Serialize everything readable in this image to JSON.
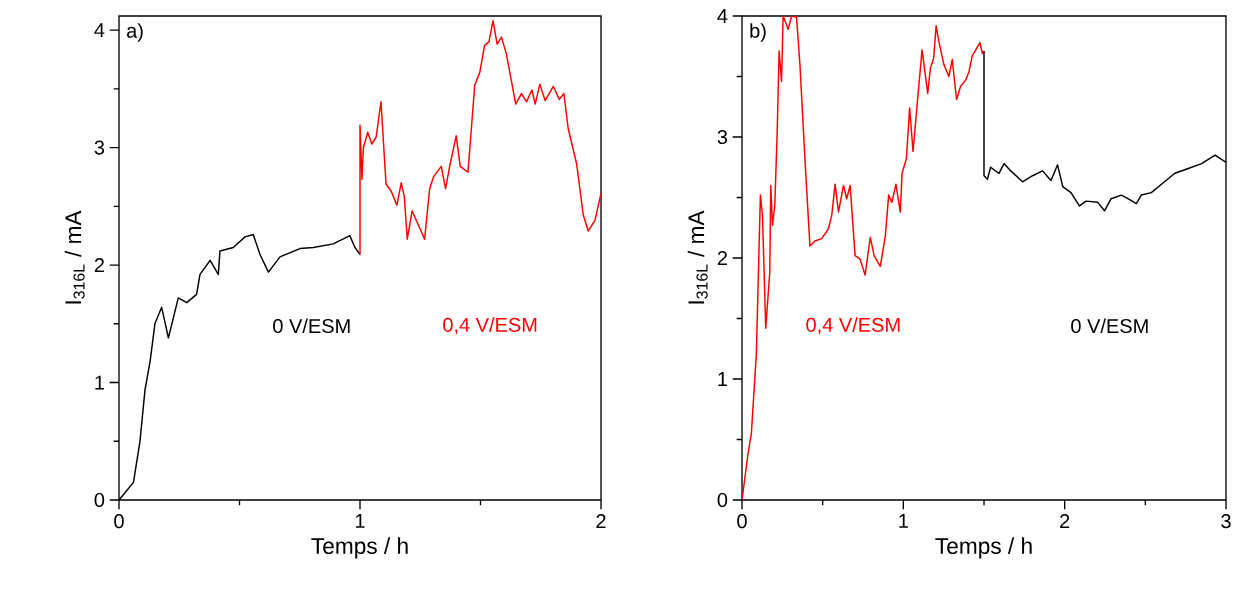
{
  "chart_data": [
    {
      "type": "line",
      "xlabel": "Temps / h",
      "ylabel": "I$_{316L}$ / mA",
      "annotations": [
        "a)"
      ],
      "xlim": [
        0,
        2
      ],
      "ylim": [
        0,
        4.12
      ],
      "xticks": [
        0,
        {
          "value": 0.5,
          "label": null
        },
        1,
        {
          "value": 1.5,
          "label": null
        },
        2
      ],
      "yticks": [
        0,
        {
          "value": 0.5,
          "label": null
        },
        1,
        {
          "value": 1.5,
          "label": null
        },
        2,
        {
          "value": 2.5,
          "label": null
        },
        3,
        {
          "value": 3.5,
          "label": null
        },
        4
      ],
      "series": [
        {
          "name": "0 V/ESM",
          "color": "#000000",
          "x": [
            0,
            0.06,
            0.087,
            0.108,
            0.129,
            0.149,
            0.177,
            0.205,
            0.246,
            0.281,
            0.322,
            0.336,
            0.378,
            0.412,
            0.419,
            0.474,
            0.523,
            0.557,
            0.585,
            0.62,
            0.668,
            0.751,
            0.806,
            0.889,
            0.958,
            0.979,
            1.0
          ],
          "values": [
            0,
            0.15,
            0.5,
            0.94,
            1.18,
            1.5,
            1.64,
            1.38,
            1.72,
            1.68,
            1.75,
            1.92,
            2.04,
            1.92,
            2.12,
            2.15,
            2.24,
            2.26,
            2.09,
            1.94,
            2.07,
            2.14,
            2.15,
            2.18,
            2.25,
            2.15,
            2.09
          ]
        },
        {
          "name": "0,4 V/ESM",
          "color": "#ff0000",
          "x": [
            1.0,
            1.0,
            1.008,
            1.014,
            1.032,
            1.049,
            1.067,
            1.087,
            1.108,
            1.129,
            1.153,
            1.171,
            1.184,
            1.196,
            1.216,
            1.247,
            1.268,
            1.289,
            1.305,
            1.337,
            1.355,
            1.372,
            1.399,
            1.416,
            1.448,
            1.476,
            1.497,
            1.517,
            1.535,
            1.552,
            1.569,
            1.587,
            1.607,
            1.628,
            1.646,
            1.67,
            1.691,
            1.713,
            1.727,
            1.746,
            1.768,
            1.802,
            1.827,
            1.846,
            1.864,
            1.899,
            1.926,
            1.947,
            1.975,
            2.0
          ],
          "values": [
            2.09,
            3.19,
            2.73,
            3.0,
            3.13,
            3.03,
            3.09,
            3.39,
            2.69,
            2.63,
            2.51,
            2.7,
            2.58,
            2.22,
            2.46,
            2.32,
            2.22,
            2.65,
            2.75,
            2.84,
            2.65,
            2.84,
            3.1,
            2.84,
            2.79,
            3.53,
            3.64,
            3.87,
            3.9,
            4.08,
            3.88,
            3.94,
            3.8,
            3.57,
            3.37,
            3.46,
            3.39,
            3.49,
            3.37,
            3.54,
            3.4,
            3.52,
            3.41,
            3.46,
            3.16,
            2.86,
            2.43,
            2.29,
            2.38,
            2.61
          ]
        }
      ]
    },
    {
      "type": "line",
      "xlabel": "Temps / h",
      "ylabel": "I$_{316L}$ / mA",
      "annotations": [
        "b)"
      ],
      "xlim": [
        0,
        3
      ],
      "ylim": [
        0,
        4
      ],
      "xticks": [
        0,
        {
          "value": 0.5,
          "label": null
        },
        1,
        {
          "value": 1.5,
          "label": null
        },
        2,
        {
          "value": 2.5,
          "label": null
        },
        3
      ],
      "yticks": [
        0,
        {
          "value": 0.5,
          "label": null
        },
        1,
        {
          "value": 1.5,
          "label": null
        },
        2,
        {
          "value": 2.5,
          "label": null
        },
        3,
        {
          "value": 3.5,
          "label": null
        },
        4
      ],
      "series": [
        {
          "name": "0,4 V/ESM",
          "color": "#ff0000",
          "x": [
            0,
            0.037,
            0.058,
            0.089,
            0.114,
            0.127,
            0.147,
            0.172,
            0.178,
            0.189,
            0.203,
            0.218,
            0.23,
            0.245,
            0.255,
            0.286,
            0.307,
            0.338,
            0.359,
            0.39,
            0.421,
            0.452,
            0.494,
            0.535,
            0.556,
            0.577,
            0.598,
            0.629,
            0.649,
            0.67,
            0.701,
            0.732,
            0.763,
            0.795,
            0.819,
            0.857,
            0.888,
            0.909,
            0.929,
            0.954,
            0.981,
            0.992,
            1.019,
            1.039,
            1.06,
            1.085,
            1.116,
            1.151,
            1.168,
            1.188,
            1.203,
            1.22,
            1.251,
            1.282,
            1.303,
            1.33,
            1.355,
            1.386,
            1.407,
            1.427,
            1.475,
            1.49,
            1.5
          ],
          "values": [
            0,
            0.38,
            0.55,
            1.21,
            2.52,
            2.35,
            1.42,
            1.88,
            2.6,
            2.27,
            2.43,
            3.04,
            3.71,
            3.46,
            4.0,
            3.89,
            4.0,
            3.99,
            3.6,
            2.82,
            2.1,
            2.14,
            2.16,
            2.24,
            2.35,
            2.61,
            2.38,
            2.6,
            2.49,
            2.6,
            2.02,
            1.99,
            1.86,
            2.17,
            2.02,
            1.93,
            2.18,
            2.52,
            2.46,
            2.61,
            2.38,
            2.7,
            2.82,
            3.24,
            2.88,
            3.26,
            3.72,
            3.36,
            3.57,
            3.65,
            3.92,
            3.79,
            3.6,
            3.5,
            3.64,
            3.31,
            3.42,
            3.47,
            3.54,
            3.67,
            3.78,
            3.69,
            3.71
          ]
        },
        {
          "name": "0 V/ESM",
          "color": "#000000",
          "x": [
            1.5,
            1.5,
            1.521,
            1.541,
            1.593,
            1.624,
            1.666,
            1.739,
            1.801,
            1.863,
            1.915,
            1.956,
            1.988,
            2.039,
            2.091,
            2.133,
            2.205,
            2.247,
            2.288,
            2.351,
            2.392,
            2.444,
            2.475,
            2.537,
            2.6,
            2.683,
            2.766,
            2.849,
            2.932,
            3.0
          ],
          "values": [
            3.71,
            2.68,
            2.65,
            2.75,
            2.7,
            2.78,
            2.72,
            2.63,
            2.68,
            2.72,
            2.64,
            2.77,
            2.59,
            2.54,
            2.43,
            2.47,
            2.46,
            2.39,
            2.49,
            2.52,
            2.49,
            2.45,
            2.52,
            2.54,
            2.61,
            2.7,
            2.74,
            2.78,
            2.85,
            2.79
          ]
        }
      ]
    }
  ]
}
